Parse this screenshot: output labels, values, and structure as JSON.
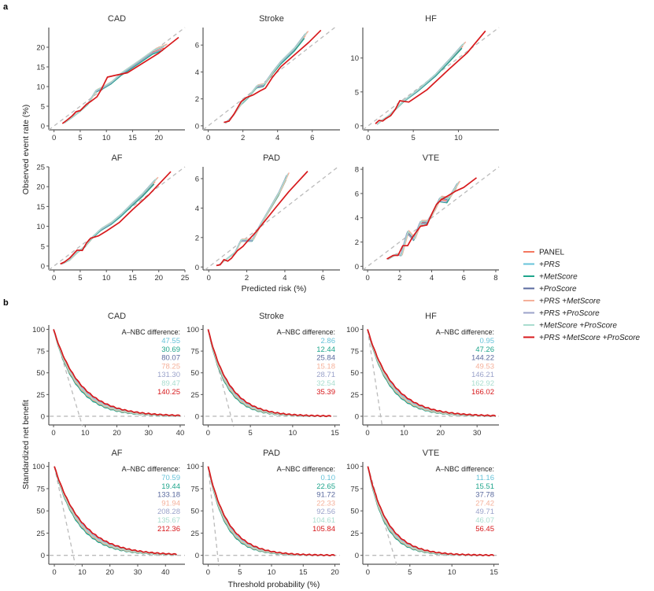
{
  "figure": {
    "panel_a_letter": "a",
    "panel_b_letter": "b"
  },
  "legend": {
    "items": [
      {
        "label": "PANEL",
        "color": "#F4775F",
        "italic": false
      },
      {
        "label": "+PRS",
        "color": "#67C3D9",
        "italic": true
      },
      {
        "label": "+MetScore",
        "color": "#1FA58C",
        "italic": true
      },
      {
        "label": "+ProScore",
        "color": "#5A6A9E",
        "italic": true
      },
      {
        "label": "+PRS +MetScore",
        "color": "#F5B09A",
        "italic": true
      },
      {
        "label": "+PRS +ProScore",
        "color": "#9BA3CA",
        "italic": true
      },
      {
        "label": "+MetScore +ProScore",
        "color": "#A9DDCF",
        "italic": true
      },
      {
        "label": "+PRS +MetScore +ProScore",
        "color": "#D7191C",
        "italic": true
      }
    ]
  },
  "chart_data": [
    {
      "id": "calibration",
      "type": "line",
      "xlabel": "Predicted risk (%)",
      "ylabel": "Observed event rate (%)",
      "reference_line": "y = x (dashed)",
      "panels": [
        {
          "title": "CAD",
          "xlim": [
            -1,
            25
          ],
          "ylim": [
            -1,
            25
          ],
          "xticks": [
            0,
            5,
            10,
            15,
            20
          ],
          "yticks": [
            0,
            5,
            10,
            15,
            20
          ],
          "series": [
            {
              "name": "+PRS +MetScore +ProScore",
              "x": [
                1.6,
                2.5,
                3.5,
                4.2,
                5.0,
                6.2,
                7.2,
                8.2,
                9.0,
                10.2,
                11.5,
                14.0,
                17.0,
                20.0,
                23.8
              ],
              "y": [
                0.6,
                1.5,
                2.6,
                3.6,
                3.9,
                5.5,
                6.4,
                7.4,
                9.2,
                12.4,
                12.8,
                13.5,
                16.0,
                18.5,
                22.5
              ]
            },
            {
              "name": "others",
              "x": [
                2.0,
                3.5,
                5.0,
                6.5,
                8.0,
                9.5,
                11.0,
                13.0,
                16.0,
                19.0,
                21.0
              ],
              "y": [
                0.8,
                2.2,
                3.8,
                5.6,
                8.8,
                9.8,
                11.0,
                13.3,
                16.0,
                18.8,
                19.8
              ]
            }
          ]
        },
        {
          "title": "Stroke",
          "xlim": [
            -0.3,
            7.6
          ],
          "ylim": [
            -0.3,
            7.3
          ],
          "xticks": [
            0,
            2,
            4,
            6
          ],
          "yticks": [
            0,
            2,
            4,
            6
          ],
          "series": [
            {
              "name": "+PRS +MetScore +ProScore",
              "x": [
                0.9,
                1.2,
                1.5,
                1.9,
                2.2,
                2.6,
                3.0,
                3.3,
                3.7,
                4.2,
                5.0,
                5.8,
                6.5
              ],
              "y": [
                0.25,
                0.35,
                0.9,
                1.8,
                2.1,
                2.3,
                2.6,
                2.8,
                3.6,
                4.4,
                5.3,
                6.2,
                7.1
              ]
            },
            {
              "name": "others",
              "x": [
                1.0,
                1.4,
                1.9,
                2.3,
                2.8,
                3.2,
                3.7,
                4.2,
                5.0,
                5.6
              ],
              "y": [
                0.2,
                0.7,
                1.6,
                2.1,
                2.9,
                3.0,
                3.9,
                4.7,
                5.7,
                6.7
              ]
            }
          ]
        },
        {
          "title": "HF",
          "xlim": [
            -0.6,
            14.5
          ],
          "ylim": [
            -0.6,
            14.5
          ],
          "xticks": [
            0,
            5,
            10
          ],
          "yticks": [
            0,
            5,
            10
          ],
          "series": [
            {
              "name": "+PRS +MetScore +ProScore",
              "x": [
                0.8,
                1.2,
                1.6,
                2.0,
                2.5,
                3.0,
                3.5,
                4.5,
                6.5,
                9.0,
                11.0,
                13.0
              ],
              "y": [
                0.3,
                0.8,
                0.7,
                1.1,
                1.5,
                2.4,
                3.7,
                3.5,
                5.3,
                8.4,
                10.8,
                14.0
              ]
            },
            {
              "name": "others",
              "x": [
                1.0,
                1.5,
                2.2,
                3.0,
                4.0,
                5.5,
                7.5,
                9.0,
                10.5
              ],
              "y": [
                0.2,
                0.8,
                1.4,
                2.4,
                3.7,
                5.2,
                7.5,
                9.6,
                11.8
              ]
            }
          ]
        },
        {
          "title": "AF",
          "xlim": [
            -1,
            25
          ],
          "ylim": [
            -1,
            25
          ],
          "xticks": [
            0,
            5,
            10,
            15,
            20,
            25
          ],
          "yticks": [
            0,
            5,
            10,
            15,
            20,
            25
          ],
          "series": [
            {
              "name": "+PRS +MetScore +ProScore",
              "x": [
                1.2,
                2.0,
                3.0,
                4.4,
                5.4,
                6.2,
                7.0,
                8.5,
                10.0,
                12.5,
                15.0,
                18.0,
                22.3
              ],
              "y": [
                0.5,
                1.0,
                2.0,
                4.0,
                3.9,
                5.8,
                7.0,
                7.6,
                8.8,
                11.0,
                14.2,
                17.8,
                23.8
              ]
            },
            {
              "name": "others",
              "x": [
                1.5,
                3.0,
                4.5,
                6.0,
                7.5,
                9.0,
                11.0,
                13.0,
                15.0,
                17.0,
                19.3
              ],
              "y": [
                0.5,
                1.5,
                3.5,
                5.0,
                7.4,
                9.2,
                10.8,
                13.0,
                15.6,
                18.0,
                21.3
              ]
            }
          ]
        },
        {
          "title": "PAD",
          "xlim": [
            -0.3,
            6.9
          ],
          "ylim": [
            -0.2,
            6.8
          ],
          "xticks": [
            0,
            2,
            4,
            6
          ],
          "yticks": [
            0,
            2,
            4,
            6
          ],
          "series": [
            {
              "name": "+PRS +MetScore +ProScore",
              "x": [
                0.4,
                0.6,
                0.8,
                1.0,
                1.2,
                1.5,
                1.8,
                2.0,
                2.5,
                3.0,
                3.5,
                4.2,
                5.2
              ],
              "y": [
                0.1,
                0.15,
                0.5,
                0.4,
                0.6,
                1.1,
                1.4,
                1.7,
                2.4,
                3.2,
                4.0,
                5.1,
                6.5
              ]
            },
            {
              "name": "others",
              "x": [
                0.5,
                0.8,
                1.1,
                1.4,
                1.7,
                2.0,
                2.3,
                2.7,
                3.2,
                3.7,
                4.1
              ],
              "y": [
                0.1,
                0.4,
                0.7,
                1.0,
                1.8,
                1.8,
                1.8,
                2.8,
                3.9,
                5.0,
                6.1
              ]
            }
          ]
        },
        {
          "title": "VTE",
          "xlim": [
            -0.3,
            8.2
          ],
          "ylim": [
            -0.3,
            8.2
          ],
          "xticks": [
            0,
            2,
            4,
            6,
            8
          ],
          "yticks": [
            0,
            2,
            4,
            6,
            8
          ],
          "series": [
            {
              "name": "+PRS +MetScore +ProScore",
              "x": [
                1.2,
                1.6,
                1.9,
                2.2,
                2.5,
                2.8,
                3.3,
                3.7,
                4.0,
                4.3,
                4.6,
                5.0,
                5.5,
                6.0,
                6.8
              ],
              "y": [
                0.6,
                0.9,
                0.9,
                1.7,
                1.7,
                2.4,
                3.3,
                3.4,
                4.3,
                5.1,
                5.5,
                5.8,
                6.2,
                6.5,
                7.3
              ]
            },
            {
              "name": "others",
              "x": [
                1.3,
                1.8,
                2.1,
                2.5,
                2.9,
                3.3,
                3.7,
                4.1,
                4.5,
                5.0,
                5.6
              ],
              "y": [
                0.6,
                1.0,
                0.9,
                2.8,
                2.2,
                3.6,
                3.6,
                4.4,
                5.5,
                5.4,
                6.7
              ]
            }
          ]
        }
      ]
    },
    {
      "id": "decision_curves",
      "type": "line",
      "xlabel": "Threshold probability (%)",
      "ylabel": "Standardized net benefit",
      "annotation_header": "A–NBC difference:",
      "panels": [
        {
          "title": "CAD",
          "xlim": [
            -1.5,
            41.5
          ],
          "ylim": [
            -10,
            105
          ],
          "xticks": [
            0,
            10,
            20,
            30,
            40
          ],
          "yticks": [
            0,
            25,
            50,
            75,
            100
          ],
          "treat_all_zero_at": 8.2,
          "decay": 8.5,
          "nbc_differences": [
            "47.55",
            "30.69",
            "80.07",
            "78.25",
            "131.30",
            "89.47",
            "140.25"
          ]
        },
        {
          "title": "Stroke",
          "xlim": [
            -0.6,
            15.6
          ],
          "ylim": [
            -10,
            105
          ],
          "xticks": [
            0,
            5,
            10,
            15
          ],
          "yticks": [
            0,
            25,
            50,
            75,
            100
          ],
          "treat_all_zero_at": 2.7,
          "decay": 2.5,
          "nbc_differences": [
            "2.86",
            "12.44",
            "25.84",
            "15.18",
            "28.71",
            "32.54",
            "35.39"
          ]
        },
        {
          "title": "HF",
          "xlim": [
            -1.3,
            36
          ],
          "ylim": [
            -10,
            105
          ],
          "xticks": [
            0,
            10,
            20,
            30
          ],
          "yticks": [
            0,
            25,
            50,
            75,
            100
          ],
          "treat_all_zero_at": 3.6,
          "decay": 7.0,
          "nbc_differences": [
            "0.95",
            "47.26",
            "144.22",
            "49.53",
            "146.21",
            "162.92",
            "166.02"
          ]
        },
        {
          "title": "AF",
          "xlim": [
            -2,
            47
          ],
          "ylim": [
            -10,
            105
          ],
          "xticks": [
            0,
            10,
            20,
            30,
            40
          ],
          "yticks": [
            0,
            25,
            50,
            75,
            100
          ],
          "treat_all_zero_at": 6.8,
          "decay": 10.0,
          "nbc_differences": [
            "70.59",
            "19.44",
            "133.18",
            "91.94",
            "208.28",
            "135.67",
            "212.36"
          ]
        },
        {
          "title": "PAD",
          "xlim": [
            -0.8,
            20.8
          ],
          "ylim": [
            -10,
            105
          ],
          "xticks": [
            0,
            5,
            10,
            15,
            20
          ],
          "yticks": [
            0,
            25,
            50,
            75,
            100
          ],
          "treat_all_zero_at": 1.5,
          "decay": 3.2,
          "nbc_differences": [
            "0.10",
            "22.65",
            "91.72",
            "22.33",
            "92.56",
            "104.61",
            "105.84"
          ]
        },
        {
          "title": "VTE",
          "xlim": [
            -0.6,
            15.6
          ],
          "ylim": [
            -10,
            105
          ],
          "xticks": [
            0,
            5,
            10,
            15
          ],
          "yticks": [
            0,
            25,
            50,
            75,
            100
          ],
          "treat_all_zero_at": 3.1,
          "decay": 2.4,
          "nbc_differences": [
            "11.16",
            "15.51",
            "37.78",
            "27.42",
            "49.71",
            "46.07",
            "56.45"
          ]
        }
      ]
    }
  ]
}
